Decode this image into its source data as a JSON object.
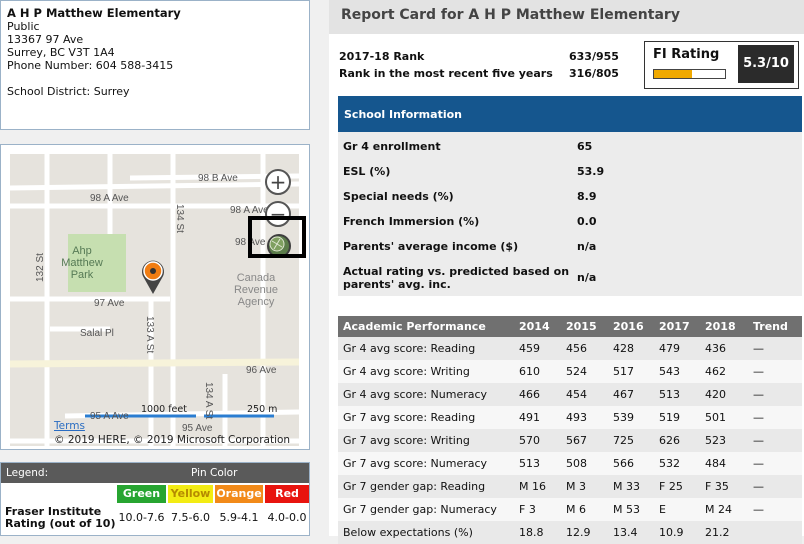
{
  "school": {
    "name": "A H P Matthew Elementary",
    "type": "Public",
    "address1": "13367 97 Ave",
    "address2": "Surrey, BC V3T 1A4",
    "phone": "Phone Number: 604 588-3415",
    "district": "School District: Surrey"
  },
  "map": {
    "streets": {
      "s98a_1": "98 A Ave",
      "s98b": "98 B Ave",
      "s98a_2": "98 A Ave",
      "s98": "98 Ave",
      "s97": "97 Ave",
      "s96": "96 Ave",
      "s95a": "95 A Ave",
      "s95": "95 Ave",
      "salal": "Salal Pl",
      "s134": "134 St",
      "s133a": "133 A St",
      "s134a": "134 A St",
      "s132": "132 St"
    },
    "park": [
      "Ahp",
      "Matthew",
      "Park"
    ],
    "agency": [
      "Canada",
      "Revenue",
      "Agency"
    ],
    "scale_ft": "1000 feet",
    "scale_m": "250 m",
    "terms": "Terms",
    "attribution": "© 2019 HERE, © 2019 Microsoft Corporation",
    "zoom_in": "+",
    "zoom_out": "−"
  },
  "legend": {
    "title": "Legend:",
    "pin_color_label": "Pin Color",
    "rating_label_1": "Fraser Institute",
    "rating_label_2": "Rating (out of 10)",
    "pins": [
      {
        "label": "Green",
        "color": "#27a531",
        "text_color": "#ffffff",
        "range": "10.0-7.6"
      },
      {
        "label": "Yellow",
        "color": "#f3ec13",
        "text_color": "#b58a00",
        "range": "7.5-6.0"
      },
      {
        "label": "Orange",
        "color": "#f28a19",
        "text_color": "#ffffff",
        "range": "5.9-4.1"
      },
      {
        "label": "Red",
        "color": "#e8140f",
        "text_color": "#ffffff",
        "range": "4.0-0.0"
      }
    ]
  },
  "report": {
    "title": "Report Card for A H P Matthew Elementary",
    "rank_label": "2017-18 Rank",
    "rank_value": "633/955",
    "rank5_label": "Rank in the most recent five years",
    "rank5_value": "316/805",
    "fi_label": "FI Rating",
    "fi_score": "5.3/10",
    "fi_fraction": 0.53,
    "accent": "#15568e"
  },
  "school_info": {
    "header": "School Information",
    "rows": [
      {
        "label": "Gr 4 enrollment",
        "value": "65"
      },
      {
        "label": "ESL (%)",
        "value": "53.9"
      },
      {
        "label": "Special needs (%)",
        "value": "8.9"
      },
      {
        "label": "French Immersion (%)",
        "value": "0.0"
      },
      {
        "label": "Parents' average income ($)",
        "value": "n/a"
      },
      {
        "label": "Actual rating vs. predicted based on",
        "label2": "parents' avg. inc.",
        "value": "n/a"
      }
    ]
  },
  "academic": {
    "headers": [
      "Academic Performance",
      "2014",
      "2015",
      "2016",
      "2017",
      "2018",
      "Trend"
    ],
    "rows": [
      [
        "Gr 4 avg score: Reading",
        "459",
        "456",
        "428",
        "479",
        "436",
        "—"
      ],
      [
        "Gr 4 avg score: Writing",
        "610",
        "524",
        "517",
        "543",
        "462",
        "—"
      ],
      [
        "Gr 4 avg score: Numeracy",
        "466",
        "454",
        "467",
        "513",
        "420",
        "—"
      ],
      [
        "Gr 7 avg score: Reading",
        "491",
        "493",
        "539",
        "519",
        "501",
        "—"
      ],
      [
        "Gr 7 avg score: Writing",
        "570",
        "567",
        "725",
        "626",
        "523",
        "—"
      ],
      [
        "Gr 7 avg score: Numeracy",
        "513",
        "508",
        "566",
        "532",
        "484",
        "—"
      ],
      [
        "Gr 7 gender gap: Reading",
        "M 16",
        "M 3",
        "M 33",
        "F 25",
        "F 35",
        "—"
      ],
      [
        "Gr 7 gender gap: Numeracy",
        "F 3",
        "M 6",
        "M 53",
        "E",
        "M 24",
        "—"
      ],
      [
        "Below expectations (%)",
        "18.8",
        "12.9",
        "13.4",
        "10.9",
        "21.2",
        ""
      ]
    ]
  }
}
